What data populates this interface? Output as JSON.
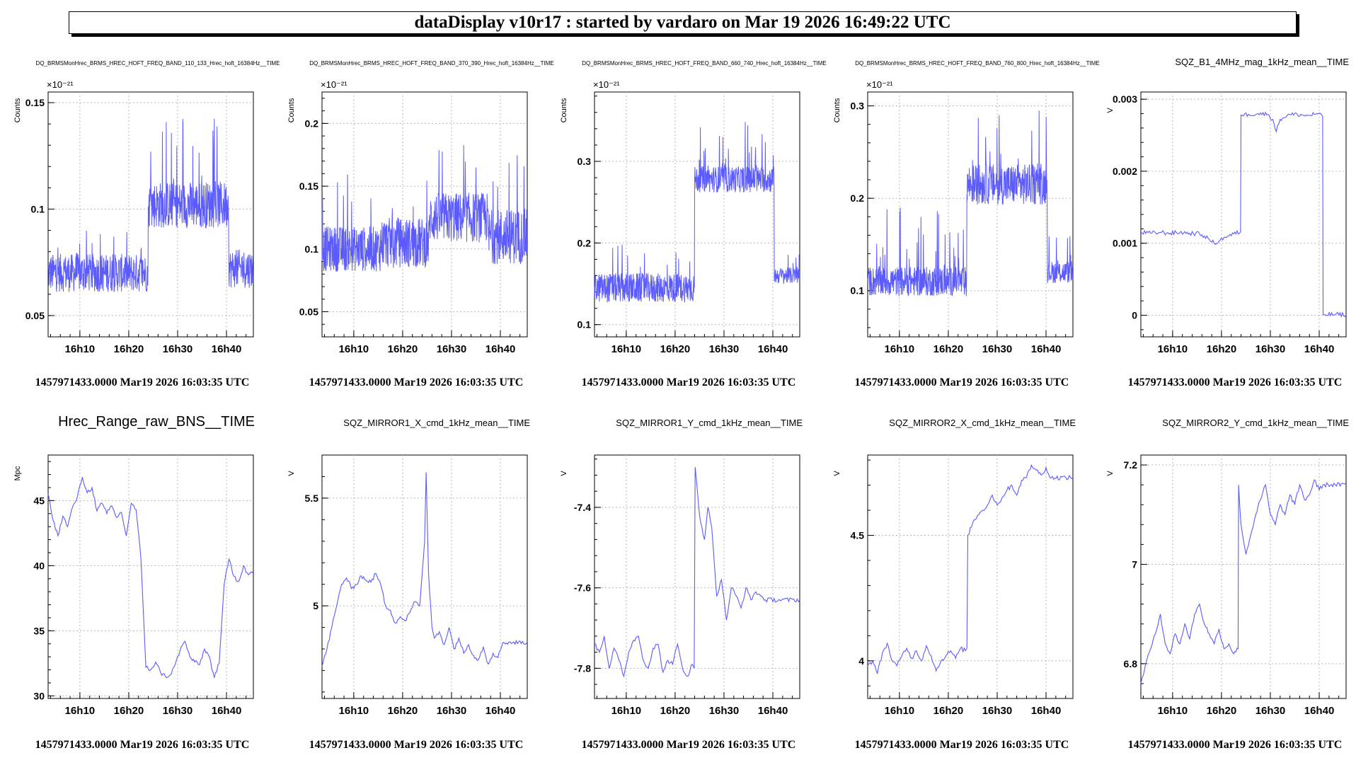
{
  "header": {
    "title": "dataDisplay v10r17 : started by vardaro on Mar 19 2026 16:49:22 UTC"
  },
  "colors": {
    "series": "#5b5bff",
    "grid": "#b8b8b8",
    "axis": "#000000"
  },
  "chart_data": [
    {
      "type": "line",
      "title": "DQ_BRMSMonHrec_BRMS_HREC_HOFT_FREQ_BAND_110_133_Hrec_hoft_16384Hz__TIME",
      "title_style": "small",
      "ylabel": "Counts",
      "exponent": "×10⁻²¹",
      "xlabel": "1457971433.0000 Mar19 2026 16:03:35 UTC",
      "x_ticks": [
        "16h10",
        "16h20",
        "16h30",
        "16h40"
      ],
      "x_tick_values": [
        6.5,
        16.5,
        26.5,
        36.5
      ],
      "xlim": [
        0,
        42
      ],
      "y_ticks": [
        "0.05",
        "0.1",
        "0.15"
      ],
      "y_tick_values": [
        0.05,
        0.1,
        0.15
      ],
      "ylim": [
        0.04,
        0.155
      ],
      "noise": true,
      "segments": [
        {
          "x0": 0,
          "x1": 20.5,
          "mean": 0.07,
          "spread": 0.009,
          "spike": 0.09
        },
        {
          "x0": 20.5,
          "x1": 37.0,
          "mean": 0.102,
          "spread": 0.011,
          "spike": 0.145
        },
        {
          "x0": 37.0,
          "x1": 42.0,
          "mean": 0.072,
          "spread": 0.009,
          "spike": 0.095
        }
      ]
    },
    {
      "type": "line",
      "title": "DQ_BRMSMonHrec_BRMS_HREC_HOFT_FREQ_BAND_370_390_Hrec_hoft_16384Hz__TIME",
      "title_style": "small",
      "ylabel": "Counts",
      "exponent": "×10⁻²¹",
      "xlabel": "1457971433.0000 Mar19 2026 16:03:35 UTC",
      "x_ticks": [
        "16h10",
        "16h20",
        "16h30",
        "16h40"
      ],
      "x_tick_values": [
        6.5,
        16.5,
        26.5,
        36.5
      ],
      "xlim": [
        0,
        42
      ],
      "y_ticks": [
        "0.05",
        "0.1",
        "0.15",
        "0.2"
      ],
      "y_tick_values": [
        0.05,
        0.1,
        0.15,
        0.2
      ],
      "ylim": [
        0.03,
        0.225
      ],
      "noise": true,
      "segments": [
        {
          "x0": 0,
          "x1": 12,
          "mean": 0.1,
          "spread": 0.018,
          "spike": 0.16
        },
        {
          "x0": 12,
          "x1": 22,
          "mean": 0.105,
          "spread": 0.02,
          "spike": 0.17
        },
        {
          "x0": 22,
          "x1": 34,
          "mean": 0.125,
          "spread": 0.02,
          "spike": 0.185
        },
        {
          "x0": 34,
          "x1": 42,
          "mean": 0.11,
          "spread": 0.022,
          "spike": 0.18
        }
      ]
    },
    {
      "type": "line",
      "title": "DQ_BRMSMonHrec_BRMS_HREC_HOFT_FREQ_BAND_660_740_Hrec_hoft_16384Hz__TIME",
      "title_style": "small",
      "ylabel": "Counts",
      "exponent": "×10⁻²¹",
      "xlabel": "1457971433.0000 Mar19 2026 16:03:35 UTC",
      "x_ticks": [
        "16h10",
        "16h20",
        "16h30",
        "16h40"
      ],
      "x_tick_values": [
        6.5,
        16.5,
        26.5,
        36.5
      ],
      "xlim": [
        0,
        42
      ],
      "y_ticks": [
        "0.1",
        "0.2",
        "0.3"
      ],
      "y_tick_values": [
        0.1,
        0.2,
        0.3
      ],
      "ylim": [
        0.085,
        0.385
      ],
      "noise": true,
      "segments": [
        {
          "x0": 0,
          "x1": 20.5,
          "mean": 0.145,
          "spread": 0.018,
          "spike": 0.22
        },
        {
          "x0": 20.5,
          "x1": 36.8,
          "mean": 0.278,
          "spread": 0.016,
          "spike": 0.35
        },
        {
          "x0": 36.8,
          "x1": 42,
          "mean": 0.16,
          "spread": 0.01,
          "spike": 0.19
        }
      ]
    },
    {
      "type": "line",
      "title": "DQ_BRMSMonHrec_BRMS_HREC_HOFT_FREQ_BAND_760_800_Hrec_hoft_16384Hz__TIME",
      "title_style": "small",
      "ylabel": "Counts",
      "exponent": "×10⁻²¹",
      "xlabel": "1457971433.0000 Mar19 2026 16:03:35 UTC",
      "x_ticks": [
        "16h10",
        "16h20",
        "16h30",
        "16h40"
      ],
      "x_tick_values": [
        6.5,
        16.5,
        26.5,
        36.5
      ],
      "xlim": [
        0,
        42
      ],
      "y_ticks": [
        "0.1",
        "0.2",
        "0.3"
      ],
      "y_tick_values": [
        0.1,
        0.2,
        0.3
      ],
      "ylim": [
        0.05,
        0.315
      ],
      "noise": true,
      "segments": [
        {
          "x0": 0,
          "x1": 20.3,
          "mean": 0.11,
          "spread": 0.016,
          "spike": 0.19
        },
        {
          "x0": 20.3,
          "x1": 36.8,
          "mean": 0.215,
          "spread": 0.022,
          "spike": 0.3
        },
        {
          "x0": 36.8,
          "x1": 42,
          "mean": 0.12,
          "spread": 0.012,
          "spike": 0.16
        }
      ]
    },
    {
      "type": "line",
      "title": "SQZ_B1_4MHz_mag_1kHz_mean__TIME",
      "title_style": "medium",
      "ylabel": "V",
      "exponent": "",
      "xlabel": "1457971433.0000 Mar19 2026 16:03:35 UTC",
      "x_ticks": [
        "16h10",
        "16h20",
        "16h30",
        "16h40"
      ],
      "x_tick_values": [
        6.5,
        16.5,
        26.5,
        36.5
      ],
      "xlim": [
        0,
        42
      ],
      "y_ticks": [
        "0",
        "0.001",
        "0.002",
        "0.003"
      ],
      "y_tick_values": [
        0,
        0.001,
        0.002,
        0.003
      ],
      "ylim": [
        -0.0003,
        0.0031
      ],
      "noise": false,
      "x": [
        0,
        2,
        4,
        6,
        8,
        10,
        12,
        13,
        14,
        15,
        16,
        17,
        18,
        19,
        20.4,
        20.5,
        22,
        24,
        26,
        27,
        27.7,
        28.5,
        30,
        32,
        34,
        36,
        37.2,
        37.3,
        42
      ],
      "y": [
        0.00115,
        0.00114,
        0.00115,
        0.00114,
        0.00115,
        0.00114,
        0.00113,
        0.0011,
        0.00105,
        0.001,
        0.00103,
        0.00108,
        0.0011,
        0.00113,
        0.00116,
        0.00278,
        0.00279,
        0.0028,
        0.00279,
        0.00272,
        0.00255,
        0.00272,
        0.00278,
        0.00279,
        0.00277,
        0.0028,
        0.00276,
        1e-05,
        1e-05
      ]
    },
    {
      "type": "line",
      "title": "Hrec_Range_raw_BNS__TIME",
      "title_style": "large",
      "ylabel": "Mpc",
      "exponent": "",
      "xlabel": "1457971433.0000 Mar19 2026 16:03:35 UTC",
      "x_ticks": [
        "16h10",
        "16h20",
        "16h30",
        "16h40"
      ],
      "x_tick_values": [
        6.5,
        16.5,
        26.5,
        36.5
      ],
      "xlim": [
        0,
        42
      ],
      "y_ticks": [
        "30",
        "35",
        "40",
        "45"
      ],
      "y_tick_values": [
        30,
        35,
        40,
        45
      ],
      "ylim": [
        29.8,
        48.5
      ],
      "noise": false,
      "x": [
        0,
        1,
        2,
        3,
        4,
        5,
        6,
        7,
        8,
        9,
        10,
        11,
        12,
        13,
        14,
        15,
        16,
        17,
        18,
        19,
        20,
        21,
        22,
        23,
        24,
        25,
        26,
        27,
        28,
        29,
        30,
        31,
        32,
        33,
        34,
        35,
        36,
        37,
        38,
        39,
        40,
        41,
        42
      ],
      "y": [
        45.5,
        43.5,
        42.3,
        43.8,
        43.0,
        44.5,
        45.3,
        46.8,
        45.6,
        46.0,
        44.2,
        44.8,
        44.0,
        44.6,
        43.7,
        44.1,
        42.3,
        44.8,
        44.3,
        40.5,
        32.2,
        32.0,
        32.6,
        31.8,
        31.5,
        31.6,
        32.4,
        33.5,
        34.2,
        33.0,
        32.6,
        32.4,
        33.6,
        33.0,
        31.4,
        32.5,
        38.5,
        40.5,
        39.2,
        38.8,
        40.0,
        39.3,
        39.6
      ]
    },
    {
      "type": "line",
      "title": "SQZ_MIRROR1_X_cmd_1kHz_mean__TIME",
      "title_style": "medium",
      "ylabel": "V",
      "exponent": "",
      "xlabel": "1457971433.0000 Mar19 2026 16:03:35 UTC",
      "x_ticks": [
        "16h10",
        "16h20",
        "16h30",
        "16h40"
      ],
      "x_tick_values": [
        6.5,
        16.5,
        26.5,
        36.5
      ],
      "xlim": [
        0,
        42
      ],
      "y_ticks": [
        "5",
        "5.5"
      ],
      "y_tick_values": [
        5,
        5.5
      ],
      "ylim": [
        4.57,
        5.7
      ],
      "noise": false,
      "x": [
        0,
        1,
        2,
        3,
        4,
        5,
        6,
        7,
        8,
        9,
        10,
        11,
        12,
        13,
        14,
        15,
        16,
        17,
        18,
        19,
        20,
        21,
        21.3,
        21.8,
        22.5,
        23,
        24,
        25,
        26,
        27,
        28,
        29,
        30,
        31,
        32,
        33,
        34,
        35,
        36,
        37,
        42
      ],
      "y": [
        4.72,
        4.8,
        4.9,
        5.0,
        5.1,
        5.13,
        5.08,
        5.1,
        5.14,
        5.12,
        5.11,
        5.15,
        5.1,
        5.0,
        4.98,
        4.92,
        4.95,
        4.93,
        4.97,
        5.02,
        5.0,
        5.3,
        5.62,
        5.15,
        4.9,
        4.85,
        4.88,
        4.82,
        4.9,
        4.8,
        4.85,
        4.78,
        4.82,
        4.77,
        4.75,
        4.81,
        4.73,
        4.78,
        4.76,
        4.83,
        4.83
      ]
    },
    {
      "type": "line",
      "title": "SQZ_MIRROR1_Y_cmd_1kHz_mean__TIME",
      "title_style": "medium",
      "ylabel": "V",
      "exponent": "",
      "xlabel": "1457971433.0000 Mar19 2026 16:03:35 UTC",
      "x_ticks": [
        "16h10",
        "16h20",
        "16h30",
        "16h40"
      ],
      "x_tick_values": [
        6.5,
        16.5,
        26.5,
        36.5
      ],
      "xlim": [
        0,
        42
      ],
      "y_ticks": [
        "-7.8",
        "-7.6",
        "-7.4"
      ],
      "y_tick_values": [
        -7.8,
        -7.6,
        -7.4
      ],
      "ylim": [
        -7.875,
        -7.27
      ],
      "noise": false,
      "x": [
        0,
        1,
        2,
        3,
        4,
        5,
        6,
        7,
        8,
        9,
        10,
        11,
        12,
        13,
        14,
        15,
        16,
        17,
        18,
        19,
        20,
        20.4,
        20.6,
        21.5,
        22.5,
        23.2,
        24,
        25,
        26,
        27,
        28,
        29,
        30,
        31,
        32,
        33,
        34,
        35,
        42
      ],
      "y": [
        -7.74,
        -7.76,
        -7.72,
        -7.8,
        -7.75,
        -7.78,
        -7.82,
        -7.76,
        -7.73,
        -7.72,
        -7.78,
        -7.8,
        -7.75,
        -7.74,
        -7.81,
        -7.78,
        -7.79,
        -7.74,
        -7.8,
        -7.82,
        -7.79,
        -7.8,
        -7.3,
        -7.42,
        -7.48,
        -7.4,
        -7.45,
        -7.62,
        -7.58,
        -7.68,
        -7.6,
        -7.62,
        -7.65,
        -7.6,
        -7.63,
        -7.61,
        -7.62,
        -7.63,
        -7.63
      ]
    },
    {
      "type": "line",
      "title": "SQZ_MIRROR2_X_cmd_1kHz_mean__TIME",
      "title_style": "medium",
      "ylabel": "V",
      "exponent": "",
      "xlabel": "1457971433.0000 Mar19 2026 16:03:35 UTC",
      "x_ticks": [
        "16h10",
        "16h20",
        "16h30",
        "16h40"
      ],
      "x_tick_values": [
        6.5,
        16.5,
        26.5,
        36.5
      ],
      "xlim": [
        0,
        42
      ],
      "y_ticks": [
        "4",
        "4.5"
      ],
      "y_tick_values": [
        4,
        4.5
      ],
      "ylim": [
        3.85,
        4.82
      ],
      "noise": false,
      "x": [
        0,
        1,
        2,
        3,
        4,
        5,
        6,
        7,
        8,
        9,
        10,
        11,
        12,
        13,
        14,
        15,
        16,
        17,
        18,
        19,
        20,
        20.3,
        20.5,
        21.5,
        22.5,
        23.5,
        24.5,
        25.5,
        26.5,
        27.5,
        28.5,
        29.5,
        30.5,
        31.5,
        32.5,
        33.5,
        34.5,
        35.5,
        36.5,
        37.3,
        42
      ],
      "y": [
        3.98,
        4.0,
        3.95,
        4.03,
        4.07,
        4.0,
        3.98,
        4.02,
        4.05,
        4.01,
        4.04,
        4.0,
        4.06,
        4.02,
        3.96,
        4.0,
        4.02,
        4.04,
        4.01,
        4.05,
        4.04,
        4.05,
        4.5,
        4.55,
        4.58,
        4.6,
        4.62,
        4.66,
        4.62,
        4.65,
        4.68,
        4.7,
        4.66,
        4.72,
        4.73,
        4.78,
        4.76,
        4.74,
        4.77,
        4.73,
        4.73
      ]
    },
    {
      "type": "line",
      "title": "SQZ_MIRROR2_Y_cmd_1kHz_mean__TIME",
      "title_style": "medium",
      "ylabel": "V",
      "exponent": "",
      "xlabel": "1457971433.0000 Mar19 2026 16:03:35 UTC",
      "x_ticks": [
        "16h10",
        "16h20",
        "16h30",
        "16h40"
      ],
      "x_tick_values": [
        6.5,
        16.5,
        26.5,
        36.5
      ],
      "xlim": [
        0,
        42
      ],
      "y_ticks": [
        "6.8",
        "7",
        "7.2"
      ],
      "y_tick_values": [
        6.8,
        7.0,
        7.2
      ],
      "ylim": [
        6.73,
        7.22
      ],
      "noise": false,
      "x": [
        0,
        1,
        2,
        3,
        4,
        5,
        6,
        7,
        8,
        9,
        10,
        11,
        12,
        13,
        14,
        15,
        16,
        17,
        18,
        19,
        19.9,
        20.0,
        20.5,
        21.5,
        22.5,
        23.5,
        24.5,
        25.5,
        26.5,
        27.5,
        28.5,
        29.5,
        30.5,
        31.5,
        32.5,
        33.5,
        34.5,
        35.5,
        36.5,
        37.3,
        42
      ],
      "y": [
        6.76,
        6.8,
        6.83,
        6.86,
        6.9,
        6.84,
        6.82,
        6.86,
        6.84,
        6.88,
        6.85,
        6.9,
        6.92,
        6.88,
        6.86,
        6.84,
        6.87,
        6.83,
        6.84,
        6.82,
        6.83,
        7.16,
        7.08,
        7.02,
        7.06,
        7.1,
        7.13,
        7.16,
        7.1,
        7.08,
        7.12,
        7.1,
        7.14,
        7.12,
        7.16,
        7.13,
        7.14,
        7.17,
        7.15,
        7.16,
        7.16
      ]
    }
  ]
}
